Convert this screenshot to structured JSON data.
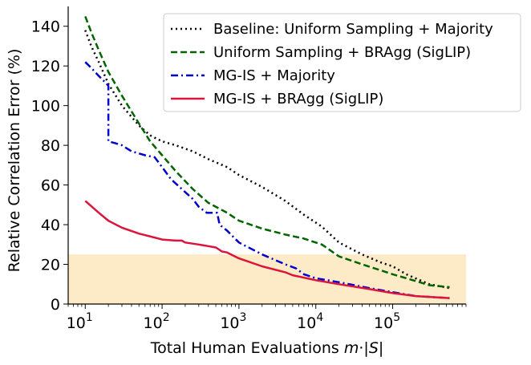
{
  "chart_data": {
    "type": "line",
    "title": "",
    "xlabel": "Total Human Evaluations",
    "ylabel": "Relative Correlation Error (%)",
    "x_scale": "log",
    "xlim": [
      6,
      900000
    ],
    "ylim": [
      0,
      150
    ],
    "grid": false,
    "legend_position": "top-right",
    "x_ticks": [
      {
        "value": 10,
        "base": "10",
        "exp": "1"
      },
      {
        "value": 100,
        "base": "10",
        "exp": "2"
      },
      {
        "value": 1000,
        "base": "10",
        "exp": "3"
      },
      {
        "value": 10000,
        "base": "10",
        "exp": "4"
      },
      {
        "value": 100000,
        "base": "10",
        "exp": "5"
      }
    ],
    "y_ticks": [
      "0",
      "20",
      "40",
      "60",
      "80",
      "100",
      "120",
      "140"
    ],
    "shaded_band": {
      "y_from": 0,
      "y_to": 25,
      "color": "#fdebc8"
    },
    "series": [
      {
        "name": "Baseline: Uniform Sampling + Majority",
        "style": "dotted",
        "color": "#000000",
        "x": [
          10,
          12,
          15,
          20,
          30,
          50,
          70,
          100,
          150,
          250,
          400,
          700,
          1000,
          2000,
          4000,
          7000,
          12000,
          20000,
          40000,
          70000,
          100000,
          150000,
          300000,
          550000
        ],
        "y": [
          138,
          130,
          122,
          111,
          100,
          90,
          85,
          82,
          80,
          77,
          73,
          69,
          65,
          59,
          52,
          45,
          39,
          31,
          25,
          21,
          19,
          15,
          10,
          8
        ]
      },
      {
        "name": "Uniform Sampling + BRAgg (SigLIP)",
        "style": "dashed",
        "color": "#006400",
        "x": [
          10,
          12,
          15,
          20,
          30,
          50,
          70,
          100,
          150,
          250,
          400,
          700,
          1000,
          2000,
          4000,
          7000,
          12000,
          20000,
          40000,
          70000,
          100000,
          150000,
          300000,
          550000
        ],
        "y": [
          145,
          137,
          128,
          117,
          105,
          91,
          82,
          75,
          67,
          58,
          51,
          46,
          42,
          38,
          35,
          33,
          30,
          24,
          20,
          17,
          15,
          13,
          9.5,
          8.5
        ]
      },
      {
        "name": "MG-IS + Majority",
        "style": "dashdot",
        "color": "#0000cc",
        "x": [
          10,
          12,
          15,
          19,
          20,
          20,
          25,
          30,
          40,
          60,
          80,
          100,
          130,
          180,
          250,
          300,
          380,
          520,
          560,
          700,
          1000,
          2000,
          4000,
          5500,
          7000,
          10000,
          20000,
          50000,
          100000,
          200000,
          550000
        ],
        "y": [
          122,
          119,
          115,
          111,
          110,
          82,
          81,
          80,
          77,
          75,
          74,
          69,
          63,
          58,
          53,
          49,
          46,
          46,
          40,
          37,
          31,
          25,
          20,
          18,
          15,
          13,
          11,
          8,
          6,
          4,
          3
        ]
      },
      {
        "name": "MG-IS + BRAgg (SigLIP)",
        "style": "solid",
        "color": "#dc143c",
        "x": [
          10,
          15,
          20,
          30,
          50,
          80,
          100,
          150,
          180,
          200,
          300,
          500,
          600,
          700,
          1000,
          2000,
          4000,
          5000,
          10000,
          20000,
          50000,
          100000,
          200000,
          550000
        ],
        "y": [
          52,
          46,
          42,
          38.5,
          35.5,
          33.5,
          32.5,
          32,
          32,
          31,
          30,
          28.5,
          26.5,
          26,
          23,
          19,
          16,
          14.5,
          12,
          10,
          7.5,
          5.5,
          4,
          3
        ]
      }
    ]
  }
}
